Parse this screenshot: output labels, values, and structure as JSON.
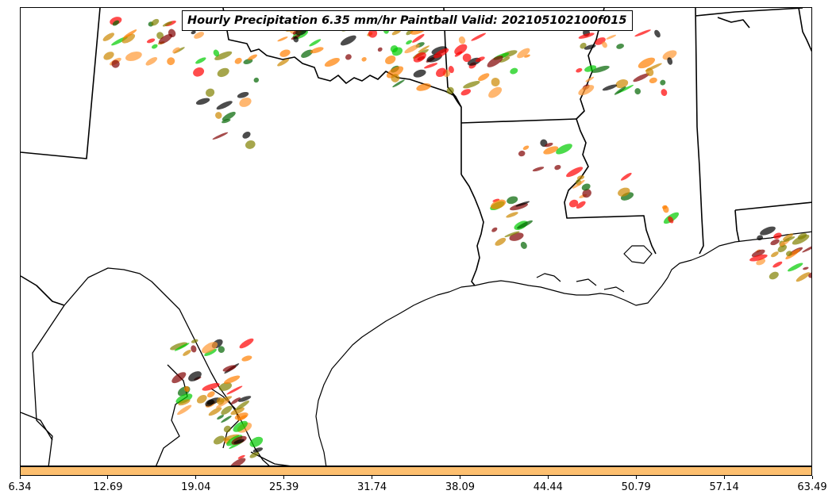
{
  "title": "Hourly Precipitation 6.35 mm/hr Paintball Valid: 202105102100f015",
  "colorbar": {
    "color": "#fdbf6f",
    "tick_labels": [
      "6.34",
      "12.69",
      "19.04",
      "25.39",
      "31.74",
      "38.09",
      "44.44",
      "50.79",
      "57.14",
      "63.49"
    ]
  },
  "paintball_colors": [
    "#ff7f00",
    "#ff0000",
    "#800000",
    "#808000",
    "#00cc00",
    "#006400",
    "#000000",
    "#ff9933",
    "#cc8800"
  ]
}
